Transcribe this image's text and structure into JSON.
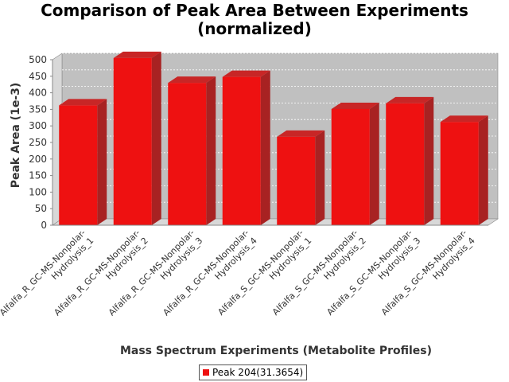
{
  "chart_data": {
    "type": "bar",
    "title_lines": [
      "Comparison of Peak Area Between Experiments",
      "(normalized)"
    ],
    "xlabel": "Mass Spectrum Experiments (Metabolite Profiles)",
    "ylabel": "Peak Area (1e-3)",
    "ylim": [
      0,
      500
    ],
    "yticks": [
      0,
      50,
      100,
      150,
      200,
      250,
      300,
      350,
      400,
      450,
      500
    ],
    "categories": [
      [
        "Alfalfa_R_GC-MS-Nonpolar-",
        "Hydrolysis_1"
      ],
      [
        "Alfalfa_R_GC-MS-Nonpolar-",
        "Hydrolysis_2"
      ],
      [
        "Alfalfa_R_GC-MS-Nonpolar-",
        "Hydrolysis_3"
      ],
      [
        "Alfalfa_R_GC-MS-Nonpolar-",
        "Hydrolysis_4"
      ],
      [
        "Alfalfa_S_GC-MS-Nonpolar-",
        "Hydrolysis_1"
      ],
      [
        "Alfalfa_S_GC-MS-Nonpolar-",
        "Hydrolysis_2"
      ],
      [
        "Alfalfa_S_GC-MS-Nonpolar-",
        "Hydrolysis_3"
      ],
      [
        "Alfalfa_S_GC-MS-Nonpolar-",
        "Hydrolysis_4"
      ]
    ],
    "series": [
      {
        "name": "Peak 204(31.3654)",
        "values": [
          362,
          505,
          430,
          448,
          267,
          351,
          368,
          312
        ],
        "color": "#ee1111"
      }
    ],
    "grid": true,
    "legend_position": "bottom-center",
    "style": "3d"
  }
}
